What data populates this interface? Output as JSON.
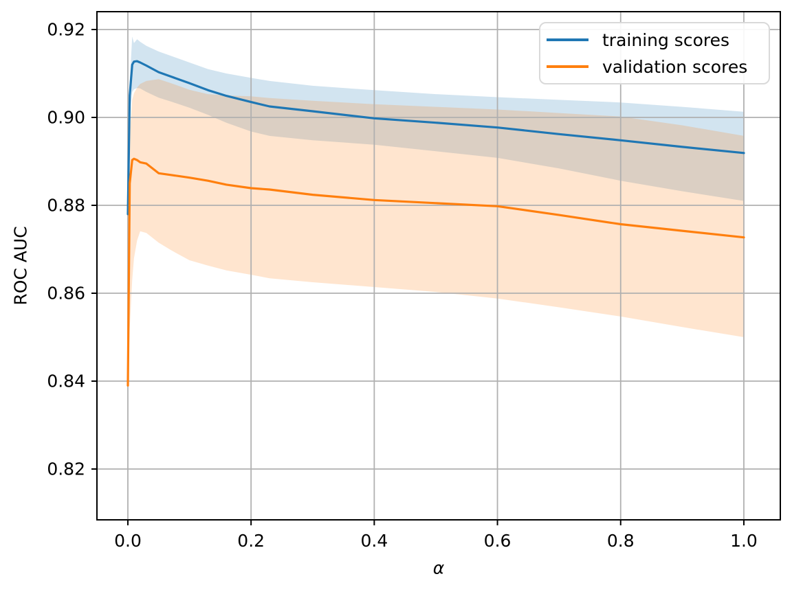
{
  "chart_data": {
    "type": "line",
    "title": "",
    "xlabel": "α",
    "ylabel": "ROC AUC",
    "xlim": [
      -0.0502,
      1.0592
    ],
    "ylim": [
      0.80844,
      0.92406
    ],
    "grid": true,
    "grid_color": "#b0b0b0",
    "spine_color": "#000000",
    "background": "#ffffff",
    "legend_position": "upper right",
    "x_ticks": [
      0.0,
      0.2,
      0.4,
      0.6,
      0.8,
      1.0
    ],
    "x_tick_labels": [
      "0.0",
      "0.2",
      "0.4",
      "0.6",
      "0.8",
      "1.0"
    ],
    "y_ticks": [
      0.82,
      0.84,
      0.86,
      0.88,
      0.9,
      0.92
    ],
    "y_tick_labels": [
      "0.82",
      "0.84",
      "0.86",
      "0.88",
      "0.90",
      "0.92"
    ],
    "x": [
      0,
      0.003,
      0.007,
      0.01,
      0.015,
      0.02,
      0.03,
      0.05,
      0.07,
      0.1,
      0.13,
      0.16,
      0.2,
      0.23,
      0.3,
      0.4,
      0.5,
      0.6,
      0.7,
      0.8,
      0.9,
      1.0
    ],
    "series": [
      {
        "name": "training scores",
        "color": "#1f77b4",
        "band_opacity": 0.2,
        "values": [
          0.878,
          0.905,
          0.912,
          0.9127,
          0.9128,
          0.9125,
          0.9118,
          0.9103,
          0.9093,
          0.9078,
          0.9062,
          0.9049,
          0.9035,
          0.9025,
          0.9014,
          0.8998,
          0.8988,
          0.8977,
          0.8962,
          0.8948,
          0.8933,
          0.8919
        ],
        "band_upper": [
          0.878,
          0.908,
          0.9184,
          0.9169,
          0.9178,
          0.9172,
          0.9163,
          0.915,
          0.914,
          0.9125,
          0.911,
          0.91,
          0.909,
          0.9083,
          0.9072,
          0.9062,
          0.9053,
          0.9046,
          0.904,
          0.9034,
          0.9024,
          0.9013
        ],
        "band_lower": [
          0.878,
          0.901,
          0.9058,
          0.9064,
          0.9067,
          0.9066,
          0.9058,
          0.9045,
          0.9036,
          0.9022,
          0.9006,
          0.8988,
          0.8968,
          0.8958,
          0.8948,
          0.8938,
          0.8923,
          0.8908,
          0.8884,
          0.8856,
          0.8832,
          0.881
        ]
      },
      {
        "name": "validation scores",
        "color": "#ff7f0e",
        "band_opacity": 0.2,
        "values": [
          0.839,
          0.885,
          0.8903,
          0.8906,
          0.8903,
          0.8898,
          0.8895,
          0.8873,
          0.8869,
          0.8863,
          0.8856,
          0.8847,
          0.8839,
          0.8836,
          0.8824,
          0.8812,
          0.8805,
          0.8798,
          0.8778,
          0.8757,
          0.8742,
          0.8727
        ],
        "band_upper": [
          0.839,
          0.896,
          0.904,
          0.9055,
          0.9068,
          0.9076,
          0.9083,
          0.9087,
          0.9078,
          0.9063,
          0.9053,
          0.905,
          0.9048,
          0.9044,
          0.9038,
          0.903,
          0.9024,
          0.9018,
          0.901,
          0.9002,
          0.8982,
          0.8958
        ],
        "band_lower": [
          0.839,
          0.852,
          0.863,
          0.868,
          0.872,
          0.8741,
          0.8737,
          0.8715,
          0.8698,
          0.8675,
          0.8663,
          0.8652,
          0.8642,
          0.8634,
          0.8625,
          0.8614,
          0.8603,
          0.8588,
          0.8568,
          0.8547,
          0.8523,
          0.85
        ]
      }
    ]
  }
}
